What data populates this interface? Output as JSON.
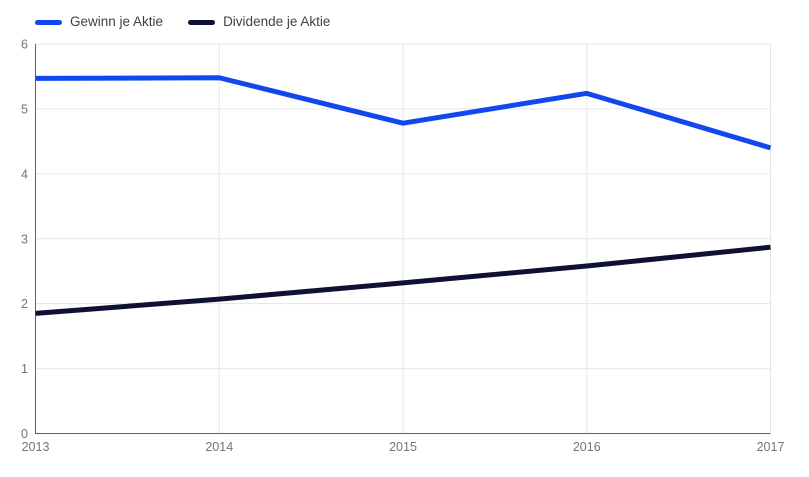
{
  "chart_data": {
    "type": "line",
    "x": [
      "2013",
      "2014",
      "2015",
      "2016",
      "2017"
    ],
    "series": [
      {
        "name": "Gewinn je Aktie",
        "color": "#1247f0",
        "values": [
          5.47,
          5.48,
          4.78,
          5.24,
          4.4
        ]
      },
      {
        "name": "Dividende je Aktie",
        "color": "#0e1134",
        "values": [
          1.85,
          2.07,
          2.32,
          2.58,
          2.87
        ]
      }
    ],
    "title": "",
    "xlabel": "",
    "ylabel": "",
    "ylim": [
      0,
      6
    ],
    "yticks": [
      0,
      1,
      2,
      3,
      4,
      5,
      6
    ],
    "grid": true,
    "legend_position": "top-left",
    "line_width": 5
  },
  "style": {
    "background": "#ffffff",
    "grid_color": "#e6e6e6",
    "axis_color": "#616161",
    "tick_label_color": "#757575",
    "legend_text_color": "#424242"
  }
}
